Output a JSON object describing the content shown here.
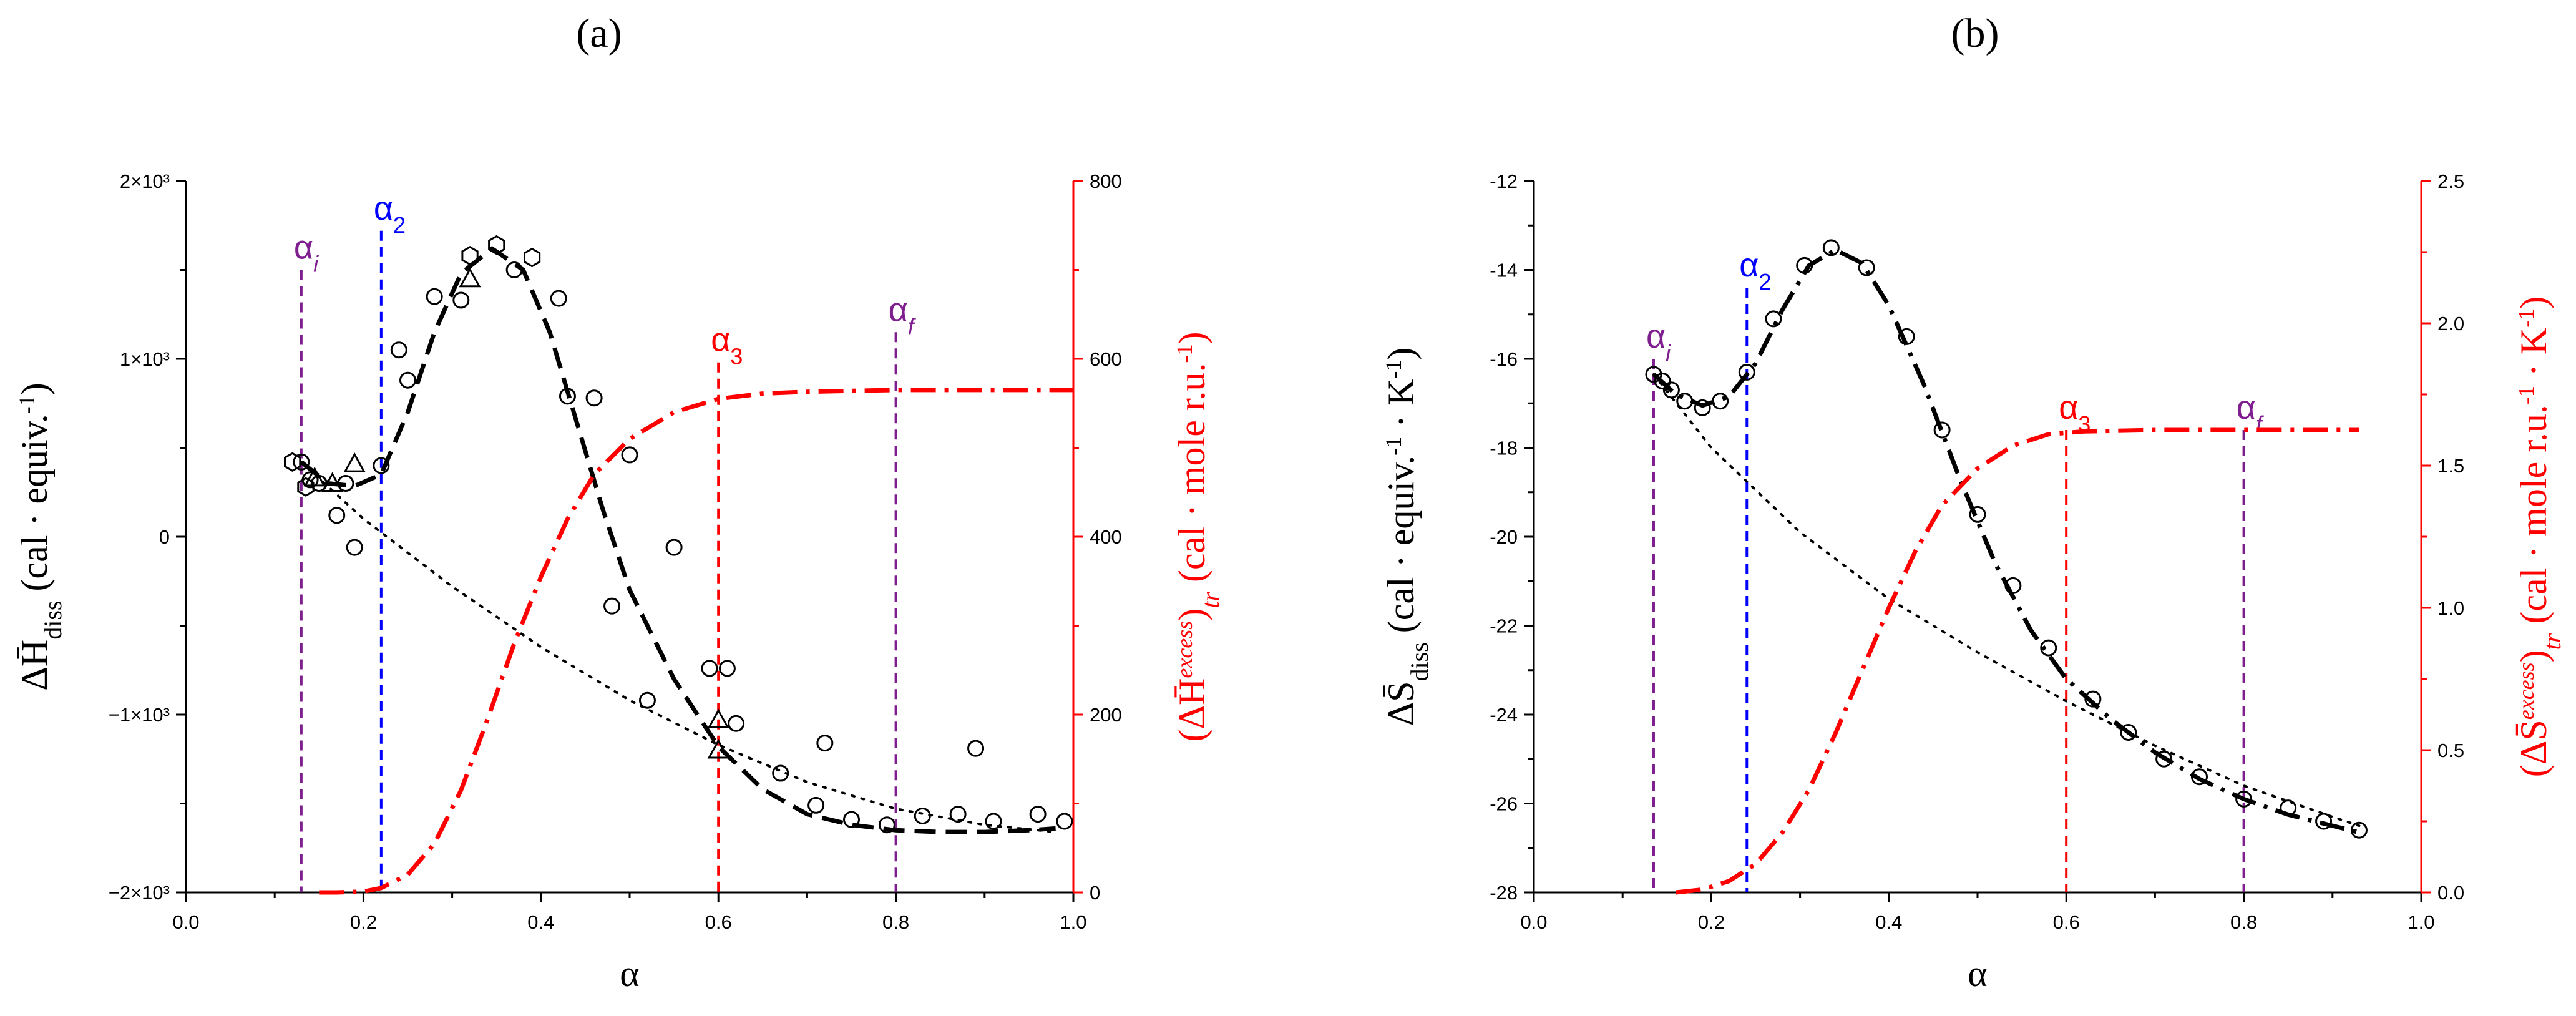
{
  "panel_labels": {
    "a": "(a)",
    "b": "(b)"
  },
  "colors": {
    "axis": "#000000",
    "red": "#ff0000",
    "blue": "#0000ff",
    "purple": "#7f1f8f"
  },
  "chart_data": [
    {
      "id": "a",
      "type": "scatter",
      "title": "(a)",
      "xlabel": "α",
      "xlim": [
        0.0,
        1.0
      ],
      "xticks": [
        0.0,
        0.2,
        0.4,
        0.6,
        0.8,
        1.0
      ],
      "xtick_labels": [
        "0.0",
        "0.2",
        "0.4",
        "0.6",
        "0.8",
        "1.0"
      ],
      "y_left": {
        "label_main": "ΔH̄",
        "label_sub": "diss",
        "label_rest": "(cal · equiv.",
        "label_sup": "-1",
        "label_end": ")",
        "lim": [
          -2000,
          2000
        ],
        "ticks": [
          -2000,
          -1000,
          0,
          1000,
          2000
        ],
        "tick_labels": [
          "−2×10³",
          "−1×10³",
          "0",
          "1×10³",
          "2×10³"
        ]
      },
      "y_right": {
        "label_pre": "(ΔH̄",
        "label_sup": "excess",
        "label_mid": ")",
        "label_sub": "tr",
        "label_rest": " (cal · mole r.u.",
        "label_sup2": "-1",
        "label_end": ")",
        "lim": [
          0,
          800
        ],
        "ticks": [
          0,
          200,
          400,
          600,
          800
        ],
        "tick_labels": [
          "0",
          "200",
          "400",
          "600",
          "800"
        ]
      },
      "markers": [
        {
          "label": "α",
          "sub": "i",
          "x": 0.13,
          "y_top": 1500,
          "color": "purple"
        },
        {
          "label": "α",
          "sub": "2",
          "x": 0.22,
          "y_top": 1720,
          "color": "blue"
        },
        {
          "label": "α",
          "sub": "3",
          "x": 0.6,
          "y_top": 980,
          "color": "red"
        },
        {
          "label": "α",
          "sub": "f",
          "x": 0.8,
          "y_top": 1150,
          "color": "purple"
        }
      ],
      "series": [
        {
          "name": "circles",
          "marker": "circle",
          "points": [
            [
              0.13,
              420
            ],
            [
              0.14,
              320
            ],
            [
              0.15,
              300
            ],
            [
              0.17,
              120
            ],
            [
              0.18,
              300
            ],
            [
              0.19,
              -60
            ],
            [
              0.22,
              400
            ],
            [
              0.24,
              1050
            ],
            [
              0.25,
              880
            ],
            [
              0.28,
              1350
            ],
            [
              0.31,
              1330
            ],
            [
              0.37,
              1500
            ],
            [
              0.42,
              1340
            ],
            [
              0.43,
              790
            ],
            [
              0.46,
              780
            ],
            [
              0.48,
              -390
            ],
            [
              0.5,
              460
            ],
            [
              0.52,
              -920
            ],
            [
              0.55,
              -60
            ],
            [
              0.59,
              -740
            ],
            [
              0.61,
              -740
            ],
            [
              0.62,
              -1050
            ],
            [
              0.67,
              -1330
            ],
            [
              0.71,
              -1510
            ],
            [
              0.72,
              -1160
            ],
            [
              0.75,
              -1590
            ],
            [
              0.79,
              -1620
            ],
            [
              0.83,
              -1570
            ],
            [
              0.87,
              -1560
            ],
            [
              0.89,
              -1190
            ],
            [
              0.91,
              -1600
            ],
            [
              0.96,
              -1560
            ],
            [
              0.99,
              -1600
            ]
          ]
        },
        {
          "name": "hexagons",
          "marker": "hexagon",
          "points": [
            [
              0.12,
              420
            ],
            [
              0.135,
              280
            ],
            [
              0.32,
              1580
            ],
            [
              0.35,
              1640
            ],
            [
              0.39,
              1570
            ]
          ]
        },
        {
          "name": "triangles",
          "marker": "triangle",
          "points": [
            [
              0.145,
              330
            ],
            [
              0.165,
              300
            ],
            [
              0.19,
              410
            ],
            [
              0.32,
              1450
            ],
            [
              0.6,
              -1030
            ],
            [
              0.6,
              -1200
            ]
          ]
        },
        {
          "name": "fit_dashed",
          "style": "dashed",
          "points": [
            [
              0.13,
              420
            ],
            [
              0.16,
              300
            ],
            [
              0.19,
              285
            ],
            [
              0.22,
              350
            ],
            [
              0.25,
              700
            ],
            [
              0.28,
              1150
            ],
            [
              0.31,
              1480
            ],
            [
              0.345,
              1620
            ],
            [
              0.38,
              1500
            ],
            [
              0.41,
              1150
            ],
            [
              0.44,
              650
            ],
            [
              0.47,
              150
            ],
            [
              0.5,
              -300
            ],
            [
              0.55,
              -800
            ],
            [
              0.6,
              -1180
            ],
            [
              0.65,
              -1420
            ],
            [
              0.7,
              -1560
            ],
            [
              0.75,
              -1620
            ],
            [
              0.8,
              -1650
            ],
            [
              0.85,
              -1660
            ],
            [
              0.9,
              -1660
            ],
            [
              0.95,
              -1650
            ],
            [
              0.98,
              -1640
            ]
          ]
        },
        {
          "name": "baseline_dotted",
          "style": "dotted",
          "points": [
            [
              0.13,
              420
            ],
            [
              0.2,
              100
            ],
            [
              0.3,
              -280
            ],
            [
              0.4,
              -620
            ],
            [
              0.5,
              -920
            ],
            [
              0.6,
              -1170
            ],
            [
              0.7,
              -1380
            ],
            [
              0.8,
              -1530
            ],
            [
              0.9,
              -1620
            ],
            [
              0.98,
              -1660
            ]
          ]
        },
        {
          "name": "excess_dashdot",
          "style": "dashdot",
          "axis": "right",
          "points": [
            [
              0.15,
              0
            ],
            [
              0.17,
              0
            ],
            [
              0.2,
              1
            ],
            [
              0.22,
              5
            ],
            [
              0.25,
              20
            ],
            [
              0.28,
              55
            ],
            [
              0.31,
              115
            ],
            [
              0.34,
              195
            ],
            [
              0.37,
              280
            ],
            [
              0.4,
              355
            ],
            [
              0.43,
              420
            ],
            [
              0.46,
              470
            ],
            [
              0.5,
              510
            ],
            [
              0.55,
              540
            ],
            [
              0.6,
              555
            ],
            [
              0.65,
              561
            ],
            [
              0.7,
              563
            ],
            [
              0.8,
              565
            ],
            [
              0.9,
              565
            ],
            [
              1.0,
              565
            ]
          ]
        }
      ]
    },
    {
      "id": "b",
      "type": "scatter",
      "title": "(b)",
      "xlabel": "α",
      "xlim": [
        0.0,
        1.0
      ],
      "xticks": [
        0.0,
        0.2,
        0.4,
        0.6,
        0.8,
        1.0
      ],
      "xtick_labels": [
        "0.0",
        "0.2",
        "0.4",
        "0.6",
        "0.8",
        "1.0"
      ],
      "y_left": {
        "label_main": "ΔS̄",
        "label_sub": "diss",
        "label_rest": "(cal · equiv.",
        "label_sup": "-1",
        "label_rest2": " · K",
        "label_sup2": "-1",
        "label_end": ")",
        "lim": [
          -28,
          -12
        ],
        "ticks": [
          -28,
          -26,
          -24,
          -22,
          -20,
          -18,
          -16,
          -14,
          -12
        ],
        "tick_labels": [
          "-28",
          "-26",
          "-24",
          "-22",
          "-20",
          "-18",
          "-16",
          "-14",
          "-12"
        ]
      },
      "y_right": {
        "label_pre": "(ΔS̄",
        "label_sup": "excess",
        "label_mid": ")",
        "label_sub": "tr",
        "label_rest": " (cal · mole r.u.",
        "label_sup2": "-1",
        "label_rest2": " · K",
        "label_sup3": "-1",
        "label_end": ")",
        "lim": [
          0.0,
          2.5
        ],
        "ticks": [
          0.0,
          0.5,
          1.0,
          1.5,
          2.0,
          2.5
        ],
        "tick_labels": [
          "0.0",
          "0.5",
          "1.0",
          "1.5",
          "2.0",
          "2.5"
        ]
      },
      "markers": [
        {
          "label": "α",
          "sub": "i",
          "x": 0.135,
          "y_top": -16.0,
          "color": "purple"
        },
        {
          "label": "α",
          "sub": "2",
          "x": 0.24,
          "y_top": -14.4,
          "color": "blue"
        },
        {
          "label": "α",
          "sub": "3",
          "x": 0.6,
          "y_top": -17.6,
          "color": "red"
        },
        {
          "label": "α",
          "sub": "f",
          "x": 0.8,
          "y_top": -17.6,
          "color": "purple"
        }
      ],
      "series": [
        {
          "name": "circles",
          "marker": "circle",
          "points": [
            [
              0.135,
              -16.35
            ],
            [
              0.145,
              -16.5
            ],
            [
              0.155,
              -16.7
            ],
            [
              0.17,
              -16.95
            ],
            [
              0.19,
              -17.1
            ],
            [
              0.21,
              -16.95
            ],
            [
              0.24,
              -16.3
            ],
            [
              0.27,
              -15.1
            ],
            [
              0.305,
              -13.9
            ],
            [
              0.335,
              -13.5
            ],
            [
              0.375,
              -13.95
            ],
            [
              0.42,
              -15.5
            ],
            [
              0.46,
              -17.6
            ],
            [
              0.5,
              -19.5
            ],
            [
              0.54,
              -21.1
            ],
            [
              0.58,
              -22.5
            ],
            [
              0.63,
              -23.65
            ],
            [
              0.67,
              -24.4
            ],
            [
              0.71,
              -25.0
            ],
            [
              0.75,
              -25.4
            ],
            [
              0.8,
              -25.9
            ],
            [
              0.85,
              -26.1
            ],
            [
              0.89,
              -26.4
            ],
            [
              0.93,
              -26.6
            ]
          ]
        },
        {
          "name": "fit_dashdot",
          "style": "dashdot",
          "points": [
            [
              0.135,
              -16.35
            ],
            [
              0.16,
              -16.8
            ],
            [
              0.19,
              -17.05
            ],
            [
              0.22,
              -16.85
            ],
            [
              0.25,
              -16.1
            ],
            [
              0.28,
              -14.9
            ],
            [
              0.31,
              -13.9
            ],
            [
              0.34,
              -13.55
            ],
            [
              0.37,
              -13.85
            ],
            [
              0.4,
              -14.8
            ],
            [
              0.44,
              -16.6
            ],
            [
              0.48,
              -18.7
            ],
            [
              0.52,
              -20.6
            ],
            [
              0.56,
              -22.1
            ],
            [
              0.6,
              -23.2
            ],
            [
              0.65,
              -24.1
            ],
            [
              0.7,
              -24.85
            ],
            [
              0.75,
              -25.45
            ],
            [
              0.8,
              -25.9
            ],
            [
              0.85,
              -26.25
            ],
            [
              0.9,
              -26.5
            ],
            [
              0.93,
              -26.65
            ]
          ]
        },
        {
          "name": "baseline_dotted",
          "style": "dotted",
          "points": [
            [
              0.135,
              -16.35
            ],
            [
              0.2,
              -18.0
            ],
            [
              0.3,
              -19.9
            ],
            [
              0.4,
              -21.4
            ],
            [
              0.5,
              -22.6
            ],
            [
              0.6,
              -23.7
            ],
            [
              0.7,
              -24.7
            ],
            [
              0.8,
              -25.6
            ],
            [
              0.9,
              -26.3
            ],
            [
              0.93,
              -26.5
            ]
          ]
        },
        {
          "name": "excess_dashdot",
          "style": "dashdot",
          "axis": "right",
          "points": [
            [
              0.16,
              0
            ],
            [
              0.19,
              0.01
            ],
            [
              0.22,
              0.04
            ],
            [
              0.25,
              0.1
            ],
            [
              0.28,
              0.21
            ],
            [
              0.31,
              0.36
            ],
            [
              0.34,
              0.56
            ],
            [
              0.37,
              0.78
            ],
            [
              0.4,
              1.0
            ],
            [
              0.43,
              1.2
            ],
            [
              0.46,
              1.36
            ],
            [
              0.5,
              1.49
            ],
            [
              0.54,
              1.57
            ],
            [
              0.58,
              1.61
            ],
            [
              0.62,
              1.62
            ],
            [
              0.7,
              1.625
            ],
            [
              0.8,
              1.625
            ],
            [
              0.9,
              1.625
            ],
            [
              0.93,
              1.625
            ]
          ]
        }
      ]
    }
  ]
}
